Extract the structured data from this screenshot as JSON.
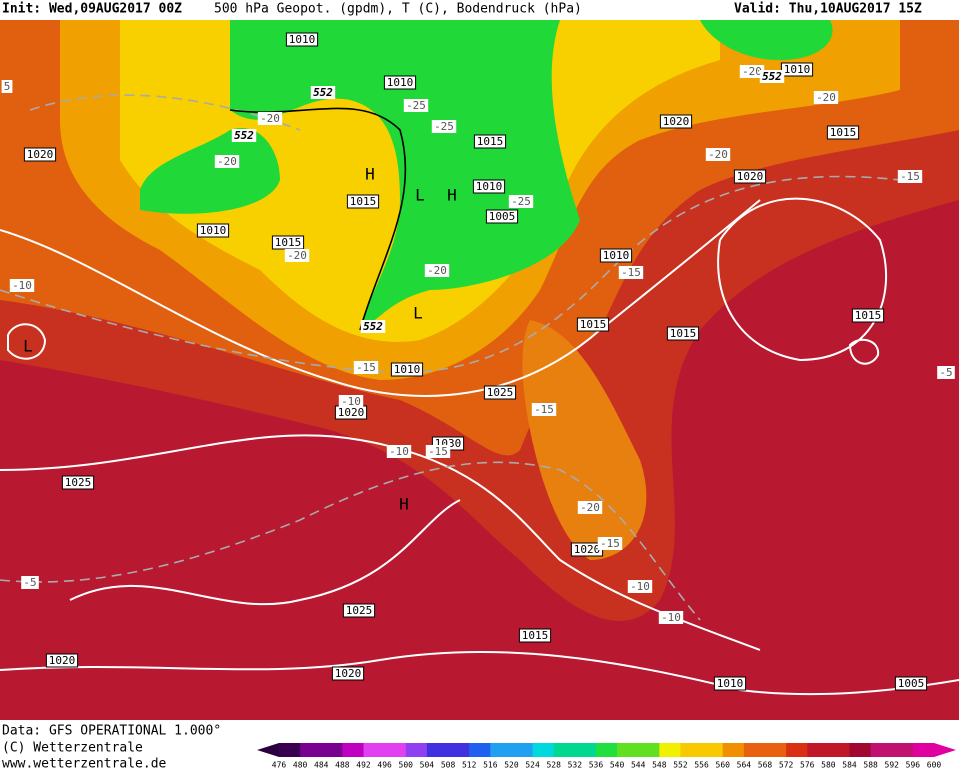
{
  "header": {
    "init": "Init: Wed,09AUG2017 00Z",
    "fields": "500 hPa Geopot. (gpdm), T (C), Bodendruck (hPa)",
    "valid": "Valid: Thu,10AUG2017 15Z"
  },
  "map": {
    "isobar_labels": [
      "1010",
      "1010",
      "1010",
      "1020",
      "1020",
      "1015",
      "1015",
      "1010",
      "1005",
      "1015",
      "1010",
      "1015",
      "1020",
      "1010",
      "1015",
      "1015",
      "1015",
      "1010",
      "1025",
      "1020",
      "1030",
      "1025",
      "1020",
      "1025",
      "1015",
      "1020",
      "1020",
      "1010",
      "1005"
    ],
    "temperature_labels": [
      "-20",
      "-25",
      "-25",
      "-20",
      "-20",
      "-20",
      "-20",
      "-15",
      "-25",
      "-20",
      "-20",
      "-15",
      "-10",
      "-15",
      "-10",
      "-15",
      "-10",
      "-15",
      "-20",
      "-15",
      "-5",
      "-10",
      "-10",
      "-5",
      "5"
    ],
    "geopotential_labels": [
      "552",
      "552",
      "552",
      "552"
    ],
    "pressure_centers": [
      "H",
      "H",
      "H",
      "L",
      "L",
      "L"
    ]
  },
  "footer": {
    "data": "Data: GFS OPERATIONAL 1.000°",
    "copyright": "(C) Wetterzentrale",
    "website": "www.wetterzentrale.de"
  },
  "colorbar": {
    "labels": [
      476,
      480,
      484,
      488,
      492,
      496,
      500,
      504,
      508,
      512,
      516,
      520,
      524,
      528,
      532,
      536,
      540,
      544,
      548,
      552,
      556,
      560,
      564,
      568,
      572,
      576,
      580,
      584,
      588,
      592,
      596,
      600
    ]
  }
}
